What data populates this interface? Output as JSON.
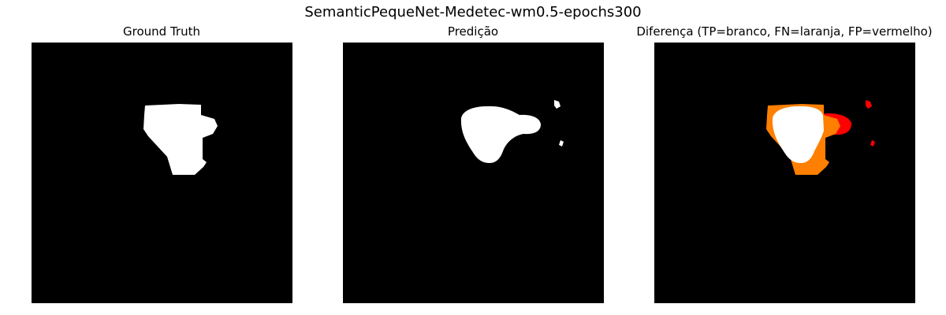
{
  "figure": {
    "title": "SemanticPequeNet-Medetec-wm0.5-epochs300"
  },
  "panels": [
    {
      "title": "Ground Truth"
    },
    {
      "title": "Predição"
    },
    {
      "title": "Diferença (TP=branco, FN=laranja, FP=vermelho)"
    }
  ],
  "colors": {
    "background": "#000000",
    "true_positive": "#ffffff",
    "false_negative": "#ff7f00",
    "false_positive": "#ff0000"
  }
}
